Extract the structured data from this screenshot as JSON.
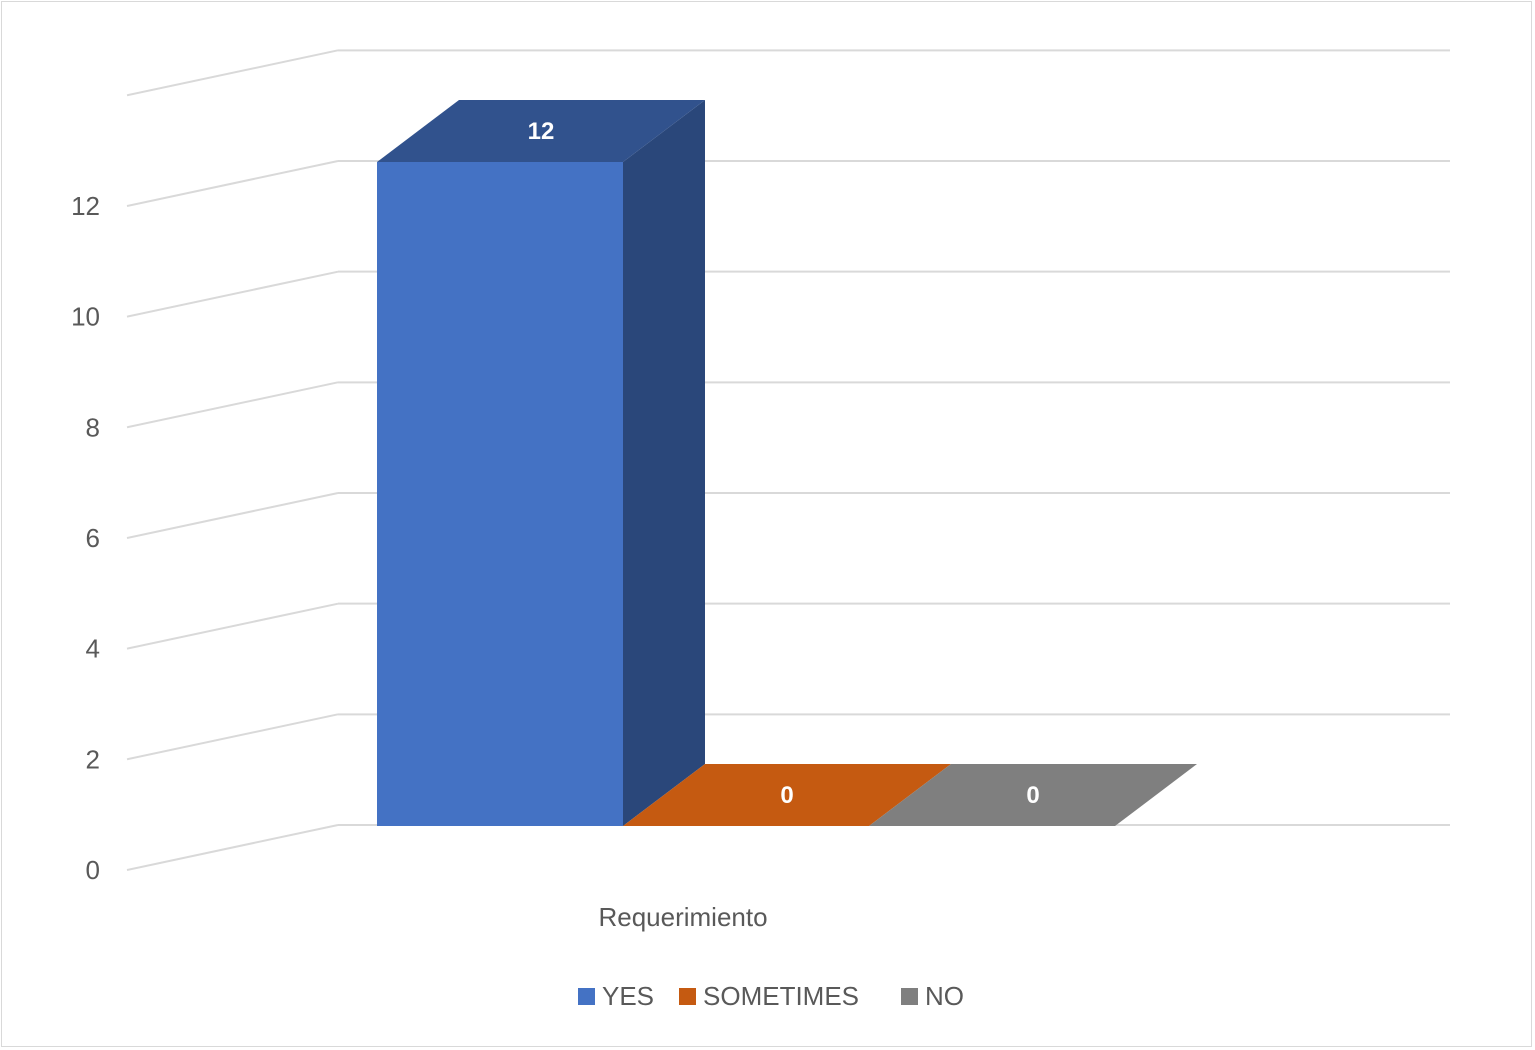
{
  "chart_data": {
    "type": "bar",
    "title": "",
    "xlabel": "",
    "ylabel": "",
    "categories": [
      "Requerimiento"
    ],
    "series": [
      {
        "name": "YES",
        "values": [
          12
        ],
        "color": "#4472c4"
      },
      {
        "name": "SOMETIMES",
        "values": [
          0
        ],
        "color": "#c55a11"
      },
      {
        "name": "NO",
        "values": [
          0
        ],
        "color": "#7f7f7f"
      }
    ],
    "ylim": [
      0,
      12
    ],
    "yticks": [
      0,
      2,
      4,
      6,
      8,
      10,
      12
    ],
    "ytick_labels": [
      "0",
      "2",
      "4",
      "6",
      "8",
      "10",
      "12"
    ],
    "data_labels": [
      "12",
      "0",
      "0"
    ],
    "grid": true,
    "three_d": true,
    "legend_position": "bottom"
  }
}
